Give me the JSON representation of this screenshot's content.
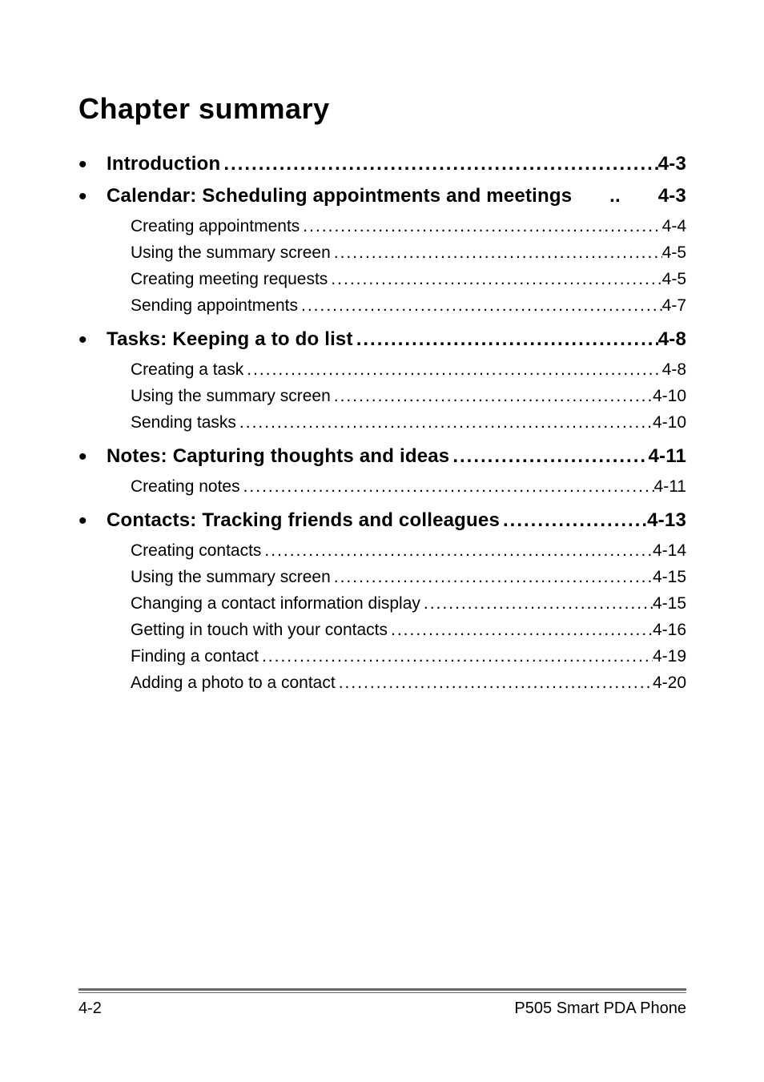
{
  "title": "Chapter summary",
  "sections": [
    {
      "label": "Introduction",
      "page": "4-3",
      "dots": true,
      "subs": []
    },
    {
      "label": "Calendar: Scheduling appointments and meetings",
      "page": "4-3",
      "dots": true,
      "dots_short": "..",
      "subs": [
        {
          "label": "Creating appointments",
          "page": "4-4"
        },
        {
          "label": "Using the summary screen",
          "page": "4-5"
        },
        {
          "label": "Creating meeting requests",
          "page": "4-5"
        },
        {
          "label": "Sending appointments",
          "page": "4-7"
        }
      ]
    },
    {
      "label": "Tasks: Keeping a to do list",
      "page": "4-8",
      "dots": true,
      "subs": [
        {
          "label": "Creating a task",
          "page": "4-8"
        },
        {
          "label": "Using the summary screen",
          "page": "4-10"
        },
        {
          "label": "Sending tasks",
          "page": "4-10"
        }
      ]
    },
    {
      "label": "Notes: Capturing thoughts and ideas",
      "page": "4-11",
      "dots": true,
      "subs": [
        {
          "label": "Creating notes",
          "page": "4-11"
        }
      ]
    },
    {
      "label": "Contacts: Tracking friends and colleagues",
      "page": "4-13",
      "dots": true,
      "subs": [
        {
          "label": "Creating contacts",
          "page": "4-14"
        },
        {
          "label": "Using the summary screen",
          "page": "4-15"
        },
        {
          "label": "Changing a contact information display",
          "page": "4-15"
        },
        {
          "label": "Getting in touch with your contacts",
          "page": "4-16"
        },
        {
          "label": "Finding a contact",
          "page": "4-19"
        },
        {
          "label": "Adding a photo to a contact",
          "page": "4-20"
        }
      ]
    }
  ],
  "footer": {
    "left": "4-2",
    "right": "P505 Smart PDA Phone"
  },
  "colors": {
    "text": "#000000",
    "footer_line": "#666666",
    "background": "#ffffff"
  },
  "leader_char": "."
}
